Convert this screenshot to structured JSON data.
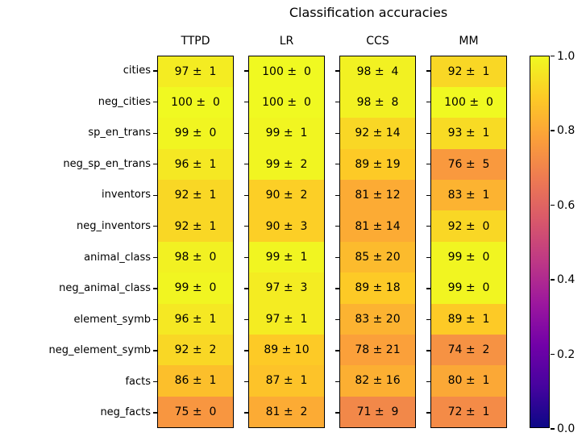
{
  "title": "Classification accuracies",
  "chart_data": {
    "type": "heatmap",
    "title": "Classification accuracies",
    "columns": [
      "TTPD",
      "LR",
      "CCS",
      "MM"
    ],
    "rows": [
      "cities",
      "neg_cities",
      "sp_en_trans",
      "neg_sp_en_trans",
      "inventors",
      "neg_inventors",
      "animal_class",
      "neg_animal_class",
      "element_symb",
      "neg_element_symb",
      "facts",
      "neg_facts"
    ],
    "cell_format": "mean ± std",
    "series": [
      {
        "name": "TTPD",
        "values": [
          [
            97,
            1
          ],
          [
            100,
            0
          ],
          [
            99,
            0
          ],
          [
            96,
            1
          ],
          [
            92,
            1
          ],
          [
            92,
            1
          ],
          [
            98,
            0
          ],
          [
            99,
            0
          ],
          [
            96,
            1
          ],
          [
            92,
            2
          ],
          [
            86,
            1
          ],
          [
            75,
            0
          ]
        ]
      },
      {
        "name": "LR",
        "values": [
          [
            100,
            0
          ],
          [
            100,
            0
          ],
          [
            99,
            1
          ],
          [
            99,
            2
          ],
          [
            90,
            2
          ],
          [
            90,
            3
          ],
          [
            99,
            1
          ],
          [
            97,
            3
          ],
          [
            97,
            1
          ],
          [
            89,
            10
          ],
          [
            87,
            1
          ],
          [
            81,
            2
          ]
        ]
      },
      {
        "name": "CCS",
        "values": [
          [
            98,
            4
          ],
          [
            98,
            8
          ],
          [
            92,
            14
          ],
          [
            89,
            19
          ],
          [
            81,
            12
          ],
          [
            81,
            14
          ],
          [
            85,
            20
          ],
          [
            89,
            18
          ],
          [
            83,
            20
          ],
          [
            78,
            21
          ],
          [
            82,
            16
          ],
          [
            71,
            9
          ]
        ]
      },
      {
        "name": "MM",
        "values": [
          [
            92,
            1
          ],
          [
            100,
            0
          ],
          [
            93,
            1
          ],
          [
            76,
            5
          ],
          [
            83,
            1
          ],
          [
            92,
            0
          ],
          [
            99,
            0
          ],
          [
            99,
            0
          ],
          [
            89,
            1
          ],
          [
            74,
            2
          ],
          [
            80,
            1
          ],
          [
            72,
            1
          ]
        ]
      }
    ],
    "value_scale_note": "cell color = mean/100 mapped on colormap",
    "colorbar": {
      "vmin": 0.0,
      "vmax": 1.0,
      "tick_labels": [
        "1.0",
        "0.8",
        "0.6",
        "0.4",
        "0.2",
        "0.0"
      ],
      "colormap": "plasma",
      "colormap_anchors": [
        "#0d0887",
        "#46039f",
        "#7201a8",
        "#9c179e",
        "#bd3786",
        "#d8576b",
        "#ed7953",
        "#fb9f3a",
        "#fdca26",
        "#f0f921"
      ]
    },
    "text_color": "#000000",
    "border_color": "#000000",
    "background_color": "#ffffff"
  }
}
